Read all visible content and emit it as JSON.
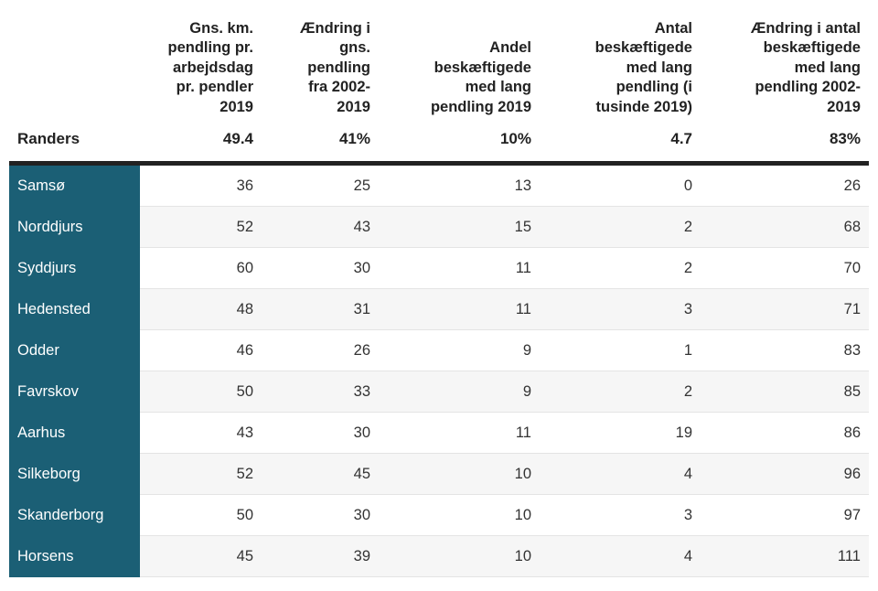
{
  "chart_data": {
    "type": "table",
    "columns": [
      "",
      "Gns. km. pendling pr. arbejdsdag pr. pendler 2019",
      "Ændring i gns. pendling fra 2002-2019",
      "Andel beskæftigede med lang pendling 2019",
      "Antal beskæftigede med lang pendling (i tusinde 2019)",
      "Ændring i antal beskæftigede med lang pendling 2002-2019"
    ],
    "header_lines": [
      [],
      [
        "Gns. km.",
        "pendling pr.",
        "arbejdsdag",
        "pr. pendler",
        "2019"
      ],
      [
        "Ændring i",
        "gns.",
        "pendling",
        "fra 2002-",
        "2019"
      ],
      [
        "Andel",
        "beskæftigede",
        "med lang",
        "pendling 2019"
      ],
      [
        "Antal",
        "beskæftigede",
        "med lang",
        "pendling (i",
        "tusinde 2019)"
      ],
      [
        "Ændring i antal",
        "beskæftigede",
        "med lang",
        "pendling 2002-",
        "2019"
      ]
    ],
    "summary": {
      "name": "Randers",
      "values": [
        "49.4",
        "41%",
        "10%",
        "4.7",
        "83%"
      ]
    },
    "rows": [
      {
        "name": "Samsø",
        "values": [
          36,
          25,
          13,
          0,
          26
        ]
      },
      {
        "name": "Norddjurs",
        "values": [
          52,
          43,
          15,
          2,
          68
        ]
      },
      {
        "name": "Syddjurs",
        "values": [
          60,
          30,
          11,
          2,
          70
        ]
      },
      {
        "name": "Hedensted",
        "values": [
          48,
          31,
          11,
          3,
          71
        ]
      },
      {
        "name": "Odder",
        "values": [
          46,
          26,
          9,
          1,
          83
        ]
      },
      {
        "name": "Favrskov",
        "values": [
          50,
          33,
          9,
          2,
          85
        ]
      },
      {
        "name": "Aarhus",
        "values": [
          43,
          30,
          11,
          19,
          86
        ]
      },
      {
        "name": "Silkeborg",
        "values": [
          52,
          45,
          10,
          4,
          96
        ]
      },
      {
        "name": "Skanderborg",
        "values": [
          50,
          30,
          10,
          3,
          97
        ]
      },
      {
        "name": "Horsens",
        "values": [
          45,
          39,
          10,
          4,
          111
        ]
      }
    ]
  },
  "colors": {
    "municipality_bg": "#1b5f75",
    "municipality_text": "#ffffff",
    "alt_row_bg": "#f6f6f6",
    "summary_rule": "#222222"
  }
}
